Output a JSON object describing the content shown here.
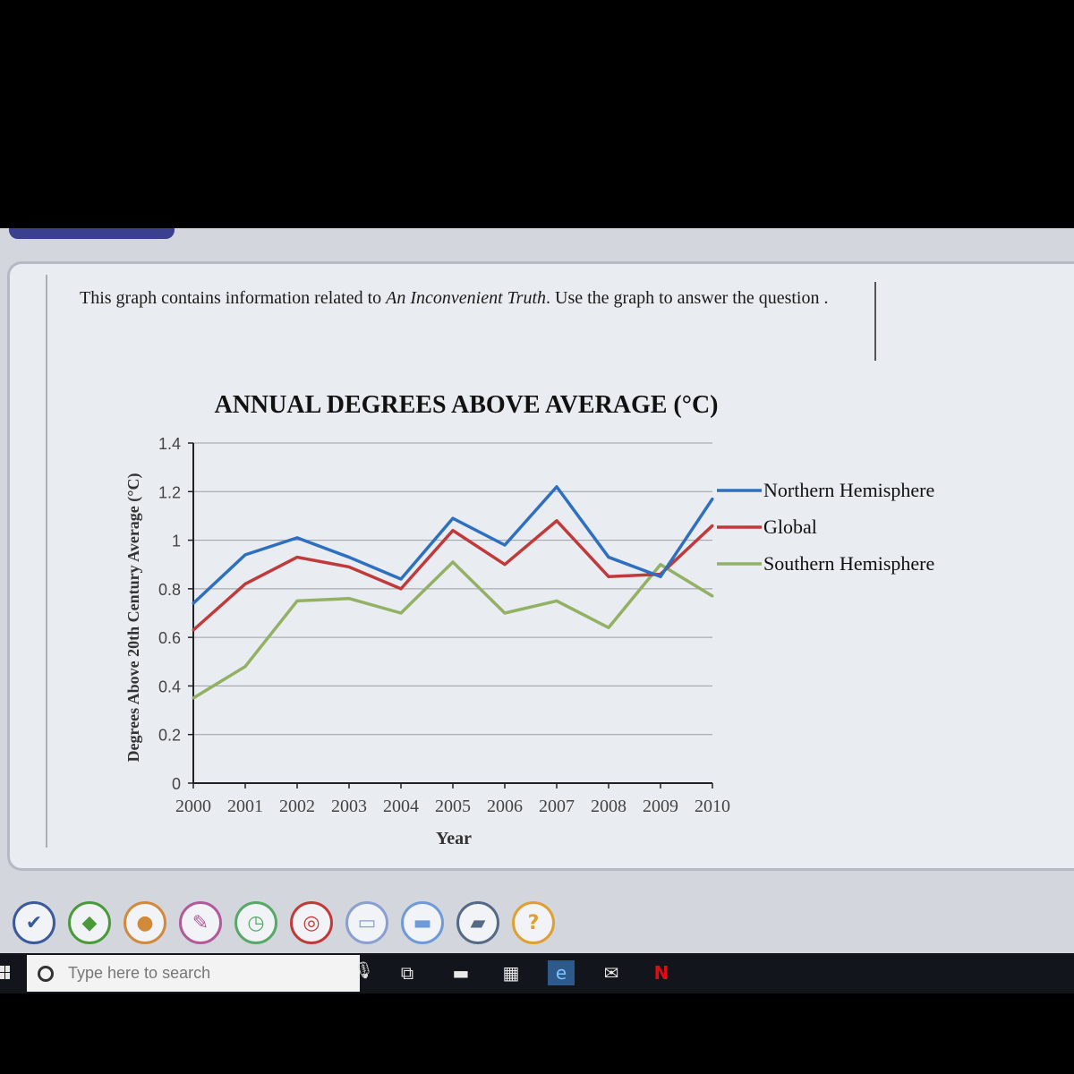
{
  "question": {
    "prefix": "This graph contains information related to ",
    "title_italic": "An Inconvenient Truth",
    "suffix": ". Use the graph to answer the question ."
  },
  "chart_data": {
    "type": "line",
    "title": "ANNUAL DEGREES ABOVE AVERAGE (°C)",
    "xlabel": "Year",
    "ylabel": "Degrees Above 20th Century Average (°C)",
    "x": [
      "2000",
      "2001",
      "2002",
      "2003",
      "2004",
      "2005",
      "2006",
      "2007",
      "2008",
      "2009",
      "2010"
    ],
    "yticks": [
      "0",
      "0.2",
      "0.4",
      "0.6",
      "0.8",
      "1",
      "1.2",
      "1.4"
    ],
    "ylim": [
      0,
      1.4
    ],
    "grid": true,
    "legend_position": "right",
    "series": [
      {
        "name": "Northern Hemisphere",
        "color": "#2e6fc0",
        "values": [
          0.74,
          0.94,
          1.01,
          0.93,
          0.84,
          1.09,
          0.98,
          1.22,
          0.93,
          0.85,
          1.17
        ]
      },
      {
        "name": "Global",
        "color": "#c0393b",
        "values": [
          0.63,
          0.82,
          0.93,
          0.89,
          0.8,
          1.04,
          0.9,
          1.08,
          0.85,
          0.86,
          1.06
        ]
      },
      {
        "name": "Southern Hemisphere",
        "color": "#93b165",
        "values": [
          0.35,
          0.48,
          0.75,
          0.76,
          0.7,
          0.91,
          0.7,
          0.75,
          0.64,
          0.9,
          0.77
        ]
      }
    ]
  },
  "toolbar": {
    "tools": [
      {
        "name": "check-tool-icon",
        "glyph": "✔",
        "color": "#3a5a9b"
      },
      {
        "name": "book-tool-icon",
        "glyph": "◆",
        "color": "#4a9a3a"
      },
      {
        "name": "globe-tool-icon",
        "glyph": "●",
        "color": "#d08a3a"
      },
      {
        "name": "pin-tool-icon",
        "glyph": "✎",
        "color": "#b05a9a"
      },
      {
        "name": "timer-tool-icon",
        "glyph": "◷",
        "color": "#58a868"
      },
      {
        "name": "target-tool-icon",
        "glyph": "◎",
        "color": "#c03a3a"
      },
      {
        "name": "notes-tool-icon",
        "glyph": "▭",
        "color": "#8aa0d0"
      },
      {
        "name": "highlighter-tool-icon",
        "glyph": "▬",
        "color": "#6f9ad8"
      },
      {
        "name": "eraser-tool-icon",
        "glyph": "▰",
        "color": "#556a86"
      },
      {
        "name": "help-tool-icon",
        "glyph": "?",
        "color": "#e0a030"
      }
    ]
  },
  "taskbar": {
    "search_placeholder": "Type here to search",
    "icons": [
      {
        "name": "task-view-icon",
        "glyph": "⧉"
      },
      {
        "name": "file-explorer-icon",
        "glyph": "▬"
      },
      {
        "name": "store-icon",
        "glyph": "▦"
      },
      {
        "name": "edge-icon",
        "glyph": "e"
      },
      {
        "name": "mail-icon",
        "glyph": "✉"
      },
      {
        "name": "netflix-icon",
        "glyph": "N"
      }
    ]
  }
}
